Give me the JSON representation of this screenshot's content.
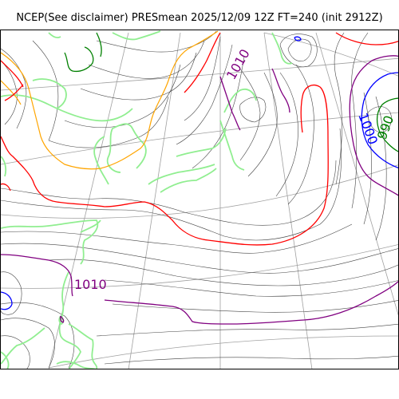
{
  "title": "NCEP(See disclaimer) PRESmean 2025/12/09 12Z FT=240 (init 2912Z)",
  "contour_labels": [
    {
      "text": "1010",
      "color": "#800080"
    },
    {
      "text": "1010",
      "color": "#800080"
    },
    {
      "text": "1000",
      "color": "#0000ff"
    },
    {
      "text": "990",
      "color": "#008000"
    }
  ],
  "colors": {
    "isobar_1010": "#800080",
    "isobar_1000": "#0000ff",
    "isobar_990": "#008000",
    "isobar_1020": "#ff0000",
    "isobar_orange": "#ffa500",
    "coastline": "#90ee90",
    "graticule": "#a0a0a0",
    "isobar_thin": "#444444"
  }
}
